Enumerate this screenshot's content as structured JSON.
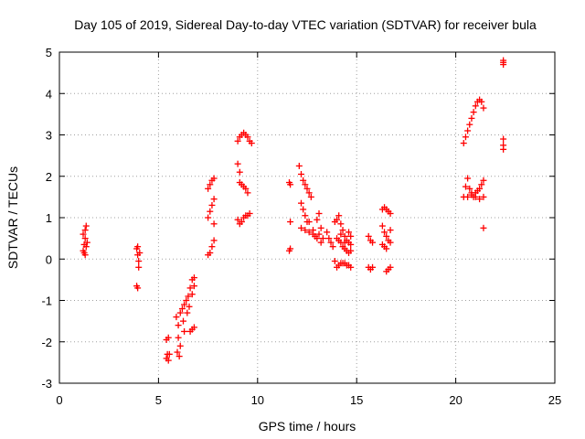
{
  "chart_data": {
    "type": "scatter",
    "title": "Day 105 of 2019, Sidereal Day-to-day VTEC variation (SDTVAR) for receiver bula",
    "xlabel": "GPS time / hours",
    "ylabel": "SDTVAR / TECUs",
    "xlim": [
      0,
      25
    ],
    "ylim": [
      -3,
      5
    ],
    "xticks": [
      0,
      5,
      10,
      15,
      20,
      25
    ],
    "yticks": [
      -3,
      -2,
      -1,
      0,
      1,
      2,
      3,
      4,
      5
    ],
    "grid": true,
    "marker": "plus",
    "color": "#ff0000",
    "series": [
      {
        "name": "bula",
        "points": [
          [
            1.2,
            0.2
          ],
          [
            1.25,
            0.35
          ],
          [
            1.3,
            0.5
          ],
          [
            1.3,
            0.7
          ],
          [
            1.35,
            0.8
          ],
          [
            1.25,
            0.15
          ],
          [
            1.35,
            0.3
          ],
          [
            1.4,
            0.4
          ],
          [
            1.2,
            0.6
          ],
          [
            1.3,
            0.1
          ],
          [
            3.9,
            0.25
          ],
          [
            3.95,
            0.1
          ],
          [
            4.0,
            -0.05
          ],
          [
            4.0,
            -0.2
          ],
          [
            3.95,
            0.3
          ],
          [
            4.05,
            0.15
          ],
          [
            3.9,
            -0.65
          ],
          [
            3.95,
            -0.7
          ],
          [
            5.4,
            -1.95
          ],
          [
            5.5,
            -1.9
          ],
          [
            5.45,
            -2.3
          ],
          [
            5.5,
            -2.45
          ],
          [
            5.4,
            -2.4
          ],
          [
            5.55,
            -2.3
          ],
          [
            5.9,
            -1.4
          ],
          [
            6.0,
            -1.6
          ],
          [
            6.0,
            -1.9
          ],
          [
            6.1,
            -2.1
          ],
          [
            6.1,
            -1.3
          ],
          [
            6.2,
            -1.2
          ],
          [
            6.25,
            -1.5
          ],
          [
            6.3,
            -1.75
          ],
          [
            5.95,
            -2.25
          ],
          [
            6.05,
            -2.35
          ],
          [
            6.3,
            -1.1
          ],
          [
            6.4,
            -1.0
          ],
          [
            6.5,
            -0.9
          ],
          [
            6.6,
            -0.7
          ],
          [
            6.7,
            -0.5
          ],
          [
            6.45,
            -1.3
          ],
          [
            6.55,
            -1.15
          ],
          [
            6.7,
            -0.85
          ],
          [
            6.8,
            -0.45
          ],
          [
            6.8,
            -0.65
          ],
          [
            6.6,
            -1.75
          ],
          [
            6.7,
            -1.7
          ],
          [
            6.8,
            -1.65
          ],
          [
            7.5,
            0.1
          ],
          [
            7.6,
            0.15
          ],
          [
            7.7,
            0.3
          ],
          [
            7.8,
            0.45
          ],
          [
            7.5,
            1.0
          ],
          [
            7.6,
            1.15
          ],
          [
            7.7,
            1.3
          ],
          [
            7.8,
            1.45
          ],
          [
            7.8,
            0.85
          ],
          [
            7.5,
            1.7
          ],
          [
            7.6,
            1.8
          ],
          [
            7.7,
            1.9
          ],
          [
            7.8,
            1.95
          ],
          [
            9.0,
            2.3
          ],
          [
            9.1,
            1.85
          ],
          [
            9.2,
            1.8
          ],
          [
            9.3,
            1.75
          ],
          [
            9.4,
            1.7
          ],
          [
            9.5,
            1.6
          ],
          [
            9.1,
            2.1
          ],
          [
            9.0,
            2.85
          ],
          [
            9.1,
            2.95
          ],
          [
            9.2,
            3.0
          ],
          [
            9.3,
            3.05
          ],
          [
            9.4,
            3.0
          ],
          [
            9.5,
            2.95
          ],
          [
            9.6,
            2.85
          ],
          [
            9.7,
            2.8
          ],
          [
            9.0,
            0.95
          ],
          [
            9.1,
            0.85
          ],
          [
            9.2,
            0.9
          ],
          [
            9.3,
            1.0
          ],
          [
            9.4,
            1.05
          ],
          [
            9.5,
            1.05
          ],
          [
            9.6,
            1.1
          ],
          [
            11.6,
            1.85
          ],
          [
            11.65,
            1.8
          ],
          [
            11.65,
            0.9
          ],
          [
            11.6,
            0.2
          ],
          [
            11.65,
            0.25
          ],
          [
            12.1,
            2.25
          ],
          [
            12.2,
            2.05
          ],
          [
            12.3,
            1.9
          ],
          [
            12.4,
            1.8
          ],
          [
            12.5,
            1.7
          ],
          [
            12.6,
            1.6
          ],
          [
            12.7,
            1.5
          ],
          [
            12.2,
            1.35
          ],
          [
            12.3,
            1.2
          ],
          [
            12.4,
            1.05
          ],
          [
            12.5,
            0.9
          ],
          [
            12.2,
            0.75
          ],
          [
            12.4,
            0.7
          ],
          [
            12.6,
            0.65
          ],
          [
            12.8,
            0.6
          ],
          [
            12.6,
            0.9
          ],
          [
            12.8,
            0.7
          ],
          [
            12.9,
            0.55
          ],
          [
            13.0,
            0.5
          ],
          [
            13.1,
            0.6
          ],
          [
            13.0,
            0.95
          ],
          [
            13.1,
            1.1
          ],
          [
            13.2,
            0.4
          ],
          [
            13.2,
            0.75
          ],
          [
            13.3,
            0.5
          ],
          [
            13.5,
            0.65
          ],
          [
            13.6,
            0.5
          ],
          [
            13.7,
            0.4
          ],
          [
            13.8,
            0.3
          ],
          [
            13.9,
            -0.05
          ],
          [
            14.0,
            -0.2
          ],
          [
            14.1,
            -0.15
          ],
          [
            14.2,
            -0.1
          ],
          [
            14.3,
            -0.1
          ],
          [
            14.4,
            -0.1
          ],
          [
            14.5,
            -0.15
          ],
          [
            14.6,
            -0.15
          ],
          [
            14.7,
            -0.2
          ],
          [
            13.9,
            0.9
          ],
          [
            14.0,
            0.95
          ],
          [
            14.1,
            1.05
          ],
          [
            14.2,
            0.85
          ],
          [
            14.3,
            0.7
          ],
          [
            14.4,
            0.55
          ],
          [
            14.5,
            0.45
          ],
          [
            14.6,
            0.4
          ],
          [
            14.7,
            0.35
          ],
          [
            14.0,
            0.5
          ],
          [
            14.1,
            0.45
          ],
          [
            14.2,
            0.4
          ],
          [
            14.3,
            0.3
          ],
          [
            14.4,
            0.25
          ],
          [
            14.5,
            0.2
          ],
          [
            14.6,
            0.15
          ],
          [
            14.7,
            0.2
          ],
          [
            14.2,
            0.6
          ],
          [
            14.4,
            0.4
          ],
          [
            14.6,
            0.65
          ],
          [
            14.7,
            0.55
          ],
          [
            15.6,
            0.55
          ],
          [
            15.7,
            0.45
          ],
          [
            15.8,
            0.4
          ],
          [
            15.6,
            -0.2
          ],
          [
            15.7,
            -0.25
          ],
          [
            15.8,
            -0.2
          ],
          [
            16.3,
            1.2
          ],
          [
            16.4,
            1.25
          ],
          [
            16.5,
            1.2
          ],
          [
            16.6,
            1.15
          ],
          [
            16.7,
            1.1
          ],
          [
            16.3,
            0.8
          ],
          [
            16.4,
            0.65
          ],
          [
            16.5,
            0.55
          ],
          [
            16.6,
            0.45
          ],
          [
            16.7,
            0.4
          ],
          [
            16.3,
            0.35
          ],
          [
            16.4,
            0.3
          ],
          [
            16.5,
            0.25
          ],
          [
            16.7,
            0.7
          ],
          [
            16.5,
            -0.3
          ],
          [
            16.6,
            -0.25
          ],
          [
            16.7,
            -0.2
          ],
          [
            20.4,
            2.8
          ],
          [
            20.5,
            2.95
          ],
          [
            20.6,
            3.1
          ],
          [
            20.7,
            3.25
          ],
          [
            20.8,
            3.4
          ],
          [
            20.9,
            3.55
          ],
          [
            21.0,
            3.7
          ],
          [
            21.1,
            3.8
          ],
          [
            21.2,
            3.85
          ],
          [
            21.3,
            3.8
          ],
          [
            21.4,
            3.65
          ],
          [
            20.4,
            1.5
          ],
          [
            20.5,
            1.75
          ],
          [
            20.6,
            1.95
          ],
          [
            20.7,
            1.7
          ],
          [
            20.8,
            1.55
          ],
          [
            20.9,
            1.5
          ],
          [
            21.0,
            1.6
          ],
          [
            21.1,
            1.65
          ],
          [
            21.2,
            1.7
          ],
          [
            21.3,
            1.8
          ],
          [
            21.4,
            1.9
          ],
          [
            20.6,
            1.5
          ],
          [
            20.8,
            1.6
          ],
          [
            21.0,
            1.5
          ],
          [
            21.2,
            1.45
          ],
          [
            21.4,
            1.5
          ],
          [
            21.4,
            0.75
          ],
          [
            22.4,
            4.75
          ],
          [
            22.4,
            4.8
          ],
          [
            22.4,
            4.7
          ],
          [
            22.4,
            2.9
          ],
          [
            22.4,
            2.75
          ],
          [
            22.4,
            2.65
          ]
        ]
      }
    ]
  }
}
